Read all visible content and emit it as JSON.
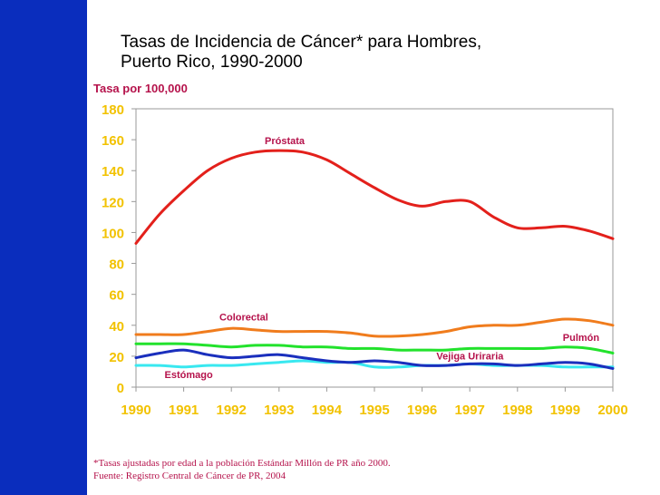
{
  "title_line1": "Tasas de Incidencia de Cáncer* para Hombres,",
  "title_line2": "Puerto Rico, 1990-2000",
  "footnote1": "*Tasas ajustadas por edad a la población Estándar Millón de PR año 2000.",
  "footnote2": "Fuente: Registro Central de Cáncer de PR, 2004",
  "colors": {
    "sidebar": "#0a2dbd",
    "tick_labels": "#f2c200",
    "series_labels": "#b5124b",
    "axis": "#999999"
  },
  "chart_data": {
    "type": "line",
    "ylabel": "Tasa por 100,000",
    "xlabel": "",
    "ylim": [
      0,
      180
    ],
    "xlim": [
      1990,
      2000
    ],
    "x_ticks": [
      "1990",
      "1991",
      "1992",
      "1993",
      "1994",
      "1995",
      "1996",
      "1997",
      "1998",
      "1999",
      "2000"
    ],
    "y_ticks": [
      "0",
      "20",
      "40",
      "60",
      "80",
      "100",
      "120",
      "140",
      "160",
      "180"
    ],
    "grid": false,
    "series": [
      {
        "name": "Próstata",
        "color": "#e3201b",
        "x": [
          1990,
          1990.5,
          1991,
          1991.5,
          1992,
          1992.5,
          1993,
          1993.5,
          1994,
          1994.5,
          1995,
          1995.5,
          1996,
          1996.5,
          1997,
          1997.5,
          1998,
          1998.5,
          1999,
          1999.5,
          2000
        ],
        "values": [
          93,
          112,
          127,
          140,
          148,
          152,
          153,
          152,
          147,
          138,
          129,
          121,
          117,
          120,
          120,
          110,
          103,
          103,
          104,
          101,
          96
        ]
      },
      {
        "name": "Colorectal",
        "color": "#f07c1d",
        "x": [
          1990,
          1990.5,
          1991,
          1991.5,
          1992,
          1992.5,
          1993,
          1993.5,
          1994,
          1994.5,
          1995,
          1995.5,
          1996,
          1996.5,
          1997,
          1997.5,
          1998,
          1998.5,
          1999,
          1999.5,
          2000
        ],
        "values": [
          34,
          34,
          34,
          36,
          38,
          37,
          36,
          36,
          36,
          35,
          33,
          33,
          34,
          36,
          39,
          40,
          40,
          42,
          44,
          43,
          40
        ]
      },
      {
        "name": "Pulmón",
        "color": "#1a2fbd",
        "x": [
          1990,
          1990.5,
          1991,
          1991.5,
          1992,
          1992.5,
          1993,
          1993.5,
          1994,
          1994.5,
          1995,
          1995.5,
          1996,
          1996.5,
          1997,
          1997.5,
          1998,
          1998.5,
          1999,
          1999.5,
          2000
        ],
        "values": [
          19,
          22,
          24,
          21,
          19,
          20,
          21,
          19,
          17,
          16,
          17,
          16,
          14,
          14,
          15,
          15,
          14,
          15,
          16,
          15,
          12
        ]
      },
      {
        "name": "Vejiga Uriraria",
        "color": "#22e22c",
        "x": [
          1990,
          1990.5,
          1991,
          1991.5,
          1992,
          1992.5,
          1993,
          1993.5,
          1994,
          1994.5,
          1995,
          1995.5,
          1996,
          1996.5,
          1997,
          1997.5,
          1998,
          1998.5,
          1999,
          1999.5,
          2000
        ],
        "values": [
          28,
          28,
          28,
          27,
          26,
          27,
          27,
          26,
          26,
          25,
          25,
          24,
          24,
          24,
          25,
          25,
          25,
          25,
          26,
          25,
          22
        ]
      },
      {
        "name": "Estómago",
        "color": "#39e8f0",
        "x": [
          1990,
          1990.5,
          1991,
          1991.5,
          1992,
          1992.5,
          1993,
          1993.5,
          1994,
          1994.5,
          1995,
          1995.5,
          1996,
          1996.5,
          1997,
          1997.5,
          1998,
          1998.5,
          1999,
          1999.5,
          2000
        ],
        "values": [
          14,
          14,
          13,
          14,
          14,
          15,
          16,
          17,
          16,
          16,
          13,
          13,
          14,
          14,
          15,
          14,
          14,
          14,
          13,
          13,
          13
        ]
      }
    ]
  }
}
